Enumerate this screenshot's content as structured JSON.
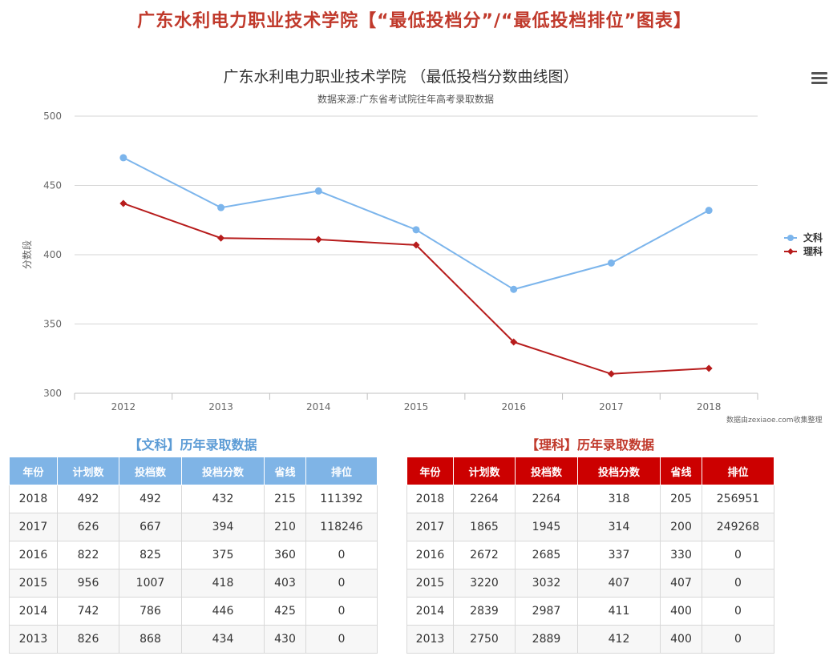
{
  "page": {
    "title": "广东水利电力职业技术学院【“最低投档分”/“最低投档排位”图表】",
    "watermark": "数据由zexiaoe.com收集整理"
  },
  "chart_data": {
    "type": "line",
    "title": "广东水利电力职业技术学院 （最低投档分数曲线图）",
    "subtitle": "数据来源:广东省考试院往年高考录取数据",
    "xlabel": "",
    "ylabel": "分数段",
    "categories": [
      "2012",
      "2013",
      "2014",
      "2015",
      "2016",
      "2017",
      "2018"
    ],
    "ylim": [
      300,
      500
    ],
    "yticks": [
      300,
      350,
      400,
      450,
      500
    ],
    "grid": true,
    "legend_position": "right",
    "series": [
      {
        "name": "文科",
        "color": "#7cb5ec",
        "values": [
          470,
          434,
          446,
          418,
          375,
          394,
          432
        ]
      },
      {
        "name": "理科",
        "color": "#b71c1c",
        "values": [
          437,
          412,
          411,
          407,
          337,
          314,
          318
        ]
      }
    ]
  },
  "tables": {
    "wen": {
      "title": "【文科】历年录取数据",
      "headers": [
        "年份",
        "计划数",
        "投档数",
        "投档分数",
        "省线",
        "排位"
      ],
      "rows": [
        [
          "2018",
          "492",
          "492",
          "432",
          "215",
          "111392"
        ],
        [
          "2017",
          "626",
          "667",
          "394",
          "210",
          "118246"
        ],
        [
          "2016",
          "822",
          "825",
          "375",
          "360",
          "0"
        ],
        [
          "2015",
          "956",
          "1007",
          "418",
          "403",
          "0"
        ],
        [
          "2014",
          "742",
          "786",
          "446",
          "425",
          "0"
        ],
        [
          "2013",
          "826",
          "868",
          "434",
          "430",
          "0"
        ]
      ]
    },
    "li": {
      "title": "【理科】历年录取数据",
      "headers": [
        "年份",
        "计划数",
        "投档数",
        "投档分数",
        "省线",
        "排位"
      ],
      "rows": [
        [
          "2018",
          "2264",
          "2264",
          "318",
          "205",
          "256951"
        ],
        [
          "2017",
          "1865",
          "1945",
          "314",
          "200",
          "249268"
        ],
        [
          "2016",
          "2672",
          "2685",
          "337",
          "330",
          "0"
        ],
        [
          "2015",
          "3220",
          "3032",
          "407",
          "407",
          "0"
        ],
        [
          "2014",
          "2839",
          "2987",
          "411",
          "400",
          "0"
        ],
        [
          "2013",
          "2750",
          "2889",
          "412",
          "400",
          "0"
        ]
      ]
    }
  }
}
